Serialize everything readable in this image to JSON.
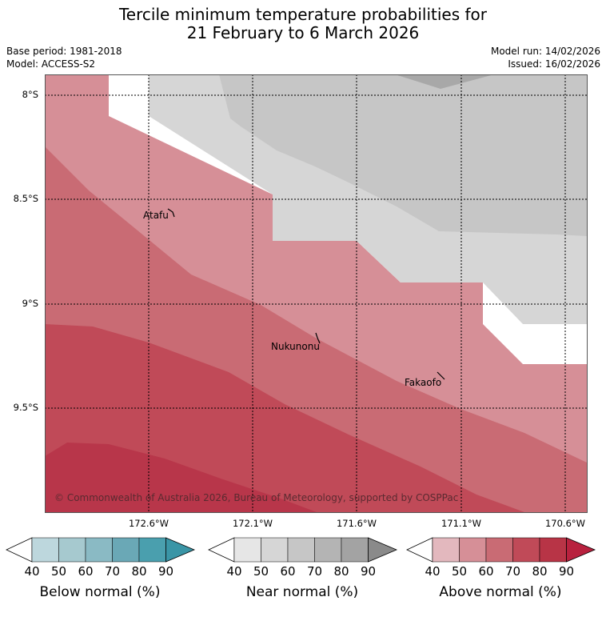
{
  "title": {
    "line1": "Tercile minimum temperature probabilities for",
    "line2": "21 February to 6 March 2026"
  },
  "meta": {
    "base_period": "Base period: 1981-2018",
    "model": "Model: ACCESS-S2",
    "model_run": "Model run: 14/02/2026",
    "issued": "Issued: 16/02/2026"
  },
  "map": {
    "lat_labels": [
      "8°S",
      "8.5°S",
      "9°S",
      "9.5°S"
    ],
    "lon_labels": [
      "172.6°W",
      "172.1°W",
      "171.6°W",
      "171.1°W",
      "170.6°W"
    ],
    "places": [
      "Atafu",
      "Nukunonu",
      "Fakaofo"
    ],
    "copyright": "© Commonwealth of Australia 2026, Bureau of Meteorology, supported by COSPPac"
  },
  "colorbars": {
    "ticks": [
      "40",
      "50",
      "60",
      "70",
      "80",
      "90"
    ],
    "below": {
      "title": "Below normal (%)",
      "colors": [
        "#ffffff",
        "#bdd7dd",
        "#a6c9cf",
        "#8abac4",
        "#6aa8b6",
        "#4a9fae",
        "#3a95a6"
      ]
    },
    "near": {
      "title": "Near normal (%)",
      "colors": [
        "#ffffff",
        "#e6e6e6",
        "#d6d6d6",
        "#c6c6c6",
        "#b4b4b4",
        "#a3a3a3",
        "#8a8a8a"
      ]
    },
    "above": {
      "title": "Above normal (%)",
      "colors": [
        "#ffffff",
        "#e3b8be",
        "#d68f97",
        "#c96b74",
        "#c04a58",
        "#b83446",
        "#b8213e"
      ]
    }
  }
}
